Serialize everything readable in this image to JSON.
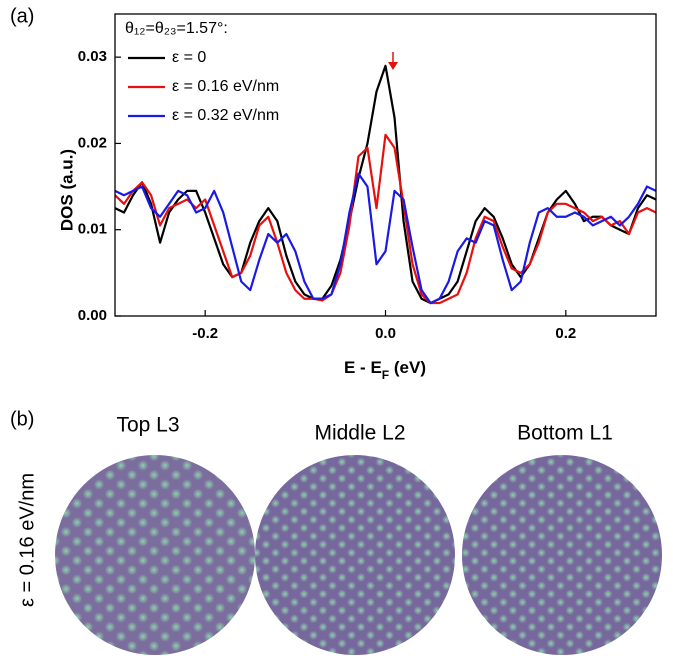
{
  "chart_data": {
    "type": "line",
    "panel_label": "(a)",
    "legend_title": "θ₁₂=θ₂₃=1.57°:",
    "y_label": "DOS (a.u.)",
    "x_label": [
      "E - E",
      "F",
      " (eV)"
    ],
    "x": [
      -0.3,
      -0.29,
      -0.28,
      -0.27,
      -0.26,
      -0.25,
      -0.24,
      -0.23,
      -0.22,
      -0.21,
      -0.2,
      -0.19,
      -0.18,
      -0.17,
      -0.16,
      -0.15,
      -0.14,
      -0.13,
      -0.12,
      -0.11,
      -0.1,
      -0.09,
      -0.08,
      -0.07,
      -0.06,
      -0.05,
      -0.04,
      -0.03,
      -0.02,
      -0.01,
      0,
      0.01,
      0.02,
      0.03,
      0.04,
      0.05,
      0.06,
      0.07,
      0.08,
      0.09,
      0.1,
      0.11,
      0.12,
      0.13,
      0.14,
      0.15,
      0.16,
      0.17,
      0.18,
      0.19,
      0.2,
      0.21,
      0.22,
      0.23,
      0.24,
      0.25,
      0.26,
      0.27,
      0.28,
      0.29,
      0.3
    ],
    "series": [
      {
        "name": "ε = 0",
        "color": "#000000",
        "values": [
          0.0125,
          0.012,
          0.014,
          0.0155,
          0.013,
          0.0085,
          0.012,
          0.0135,
          0.0145,
          0.0145,
          0.012,
          0.009,
          0.006,
          0.0045,
          0.005,
          0.0085,
          0.011,
          0.0125,
          0.011,
          0.007,
          0.004,
          0.0025,
          0.002,
          0.002,
          0.0035,
          0.0065,
          0.011,
          0.016,
          0.02,
          0.026,
          0.029,
          0.023,
          0.011,
          0.004,
          0.002,
          0.0015,
          0.002,
          0.0025,
          0.004,
          0.0075,
          0.011,
          0.0125,
          0.0115,
          0.009,
          0.006,
          0.0045,
          0.006,
          0.009,
          0.012,
          0.0135,
          0.0145,
          0.013,
          0.011,
          0.0115,
          0.0115,
          0.0105,
          0.01,
          0.0095,
          0.0125,
          0.014,
          0.0135
        ]
      },
      {
        "name": "ε = 0.16 eV/nm",
        "color": "#e8100e",
        "values": [
          0.014,
          0.013,
          0.0145,
          0.0155,
          0.014,
          0.0105,
          0.0125,
          0.013,
          0.0135,
          0.0125,
          0.0135,
          0.0105,
          0.0075,
          0.0045,
          0.005,
          0.007,
          0.0105,
          0.0115,
          0.0085,
          0.005,
          0.003,
          0.002,
          0.002,
          0.0018,
          0.0025,
          0.005,
          0.0105,
          0.0185,
          0.0195,
          0.0125,
          0.021,
          0.0195,
          0.013,
          0.006,
          0.0025,
          0.0015,
          0.0015,
          0.002,
          0.0025,
          0.005,
          0.009,
          0.0115,
          0.011,
          0.008,
          0.0055,
          0.005,
          0.006,
          0.0085,
          0.012,
          0.013,
          0.013,
          0.0125,
          0.012,
          0.011,
          0.0115,
          0.0105,
          0.011,
          0.0095,
          0.012,
          0.0125,
          0.012
        ]
      },
      {
        "name": "ε = 0.32 eV/nm",
        "color": "#1a1ae6",
        "values": [
          0.0145,
          0.014,
          0.0145,
          0.015,
          0.0125,
          0.0115,
          0.013,
          0.0145,
          0.014,
          0.012,
          0.0125,
          0.0145,
          0.012,
          0.008,
          0.004,
          0.003,
          0.0065,
          0.0095,
          0.0085,
          0.0095,
          0.0075,
          0.004,
          0.002,
          0.002,
          0.0025,
          0.006,
          0.012,
          0.0165,
          0.015,
          0.006,
          0.0075,
          0.0145,
          0.0135,
          0.008,
          0.003,
          0.0015,
          0.002,
          0.004,
          0.0075,
          0.009,
          0.0085,
          0.011,
          0.0105,
          0.0065,
          0.003,
          0.004,
          0.0085,
          0.012,
          0.0125,
          0.0115,
          0.0115,
          0.012,
          0.0115,
          0.0105,
          0.011,
          0.0115,
          0.0105,
          0.0115,
          0.013,
          0.015,
          0.0145
        ]
      }
    ],
    "xlim": [
      -0.3,
      0.3
    ],
    "ylim": [
      0,
      0.035
    ],
    "xticks": [
      -0.2,
      {
        "value": 0,
        "label": "0.0"
      },
      0.2
    ],
    "yticks": [
      {
        "value": 0,
        "label": "0.00"
      },
      0.01,
      0.02,
      0.03
    ],
    "grid": false
  },
  "panel_b": {
    "panel_label": "(b)",
    "row_label": "ε = 0.16 eV/nm",
    "images": [
      {
        "label": "Top L3"
      },
      {
        "label": "Middle L2"
      },
      {
        "label": "Bottom L1"
      }
    ]
  }
}
